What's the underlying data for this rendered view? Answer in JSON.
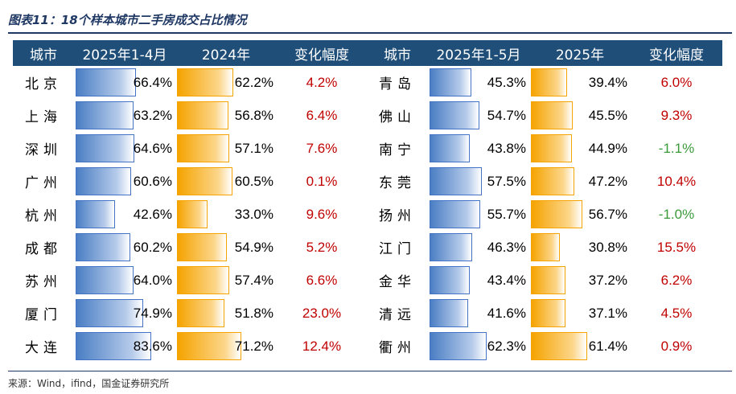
{
  "title": "图表11：18个样本城市二手房成交占比情况",
  "source": "来源：Wind，ifind，国金证券研究所",
  "colors": {
    "header_bg": "#1f4e79",
    "blue_bar": "#4a7ec4",
    "orange_bar": "#f5a300",
    "positive": "#c00000",
    "negative": "#3a9a3a"
  },
  "chart_data": {
    "type": "table",
    "title": "图表11：18个样本城市二手房成交占比情况",
    "headers": [
      "城市",
      "2025年1-4月",
      "2024年",
      "变化幅度",
      "城市",
      "2025年1-5月",
      "2025年",
      "变化幅度"
    ],
    "left": [
      {
        "city": "北京",
        "current": "66.4%",
        "current_value": 66.4,
        "prior": "62.2%",
        "prior_value": 62.2,
        "change": "4.2%",
        "change_value": 4.2
      },
      {
        "city": "上海",
        "current": "63.2%",
        "current_value": 63.2,
        "prior": "56.8%",
        "prior_value": 56.8,
        "change": "6.4%",
        "change_value": 6.4
      },
      {
        "city": "深圳",
        "current": "64.6%",
        "current_value": 64.6,
        "prior": "57.1%",
        "prior_value": 57.1,
        "change": "7.6%",
        "change_value": 7.6
      },
      {
        "city": "广州",
        "current": "60.6%",
        "current_value": 60.6,
        "prior": "60.5%",
        "prior_value": 60.5,
        "change": "0.1%",
        "change_value": 0.1
      },
      {
        "city": "杭州",
        "current": "42.6%",
        "current_value": 42.6,
        "prior": "33.0%",
        "prior_value": 33.0,
        "change": "9.6%",
        "change_value": 9.6
      },
      {
        "city": "成都",
        "current": "60.2%",
        "current_value": 60.2,
        "prior": "54.9%",
        "prior_value": 54.9,
        "change": "5.2%",
        "change_value": 5.2
      },
      {
        "city": "苏州",
        "current": "64.0%",
        "current_value": 64.0,
        "prior": "57.4%",
        "prior_value": 57.4,
        "change": "6.6%",
        "change_value": 6.6
      },
      {
        "city": "厦门",
        "current": "74.9%",
        "current_value": 74.9,
        "prior": "51.8%",
        "prior_value": 51.8,
        "change": "23.0%",
        "change_value": 23.0
      },
      {
        "city": "大连",
        "current": "83.6%",
        "current_value": 83.6,
        "prior": "71.2%",
        "prior_value": 71.2,
        "change": "12.4%",
        "change_value": 12.4
      }
    ],
    "right": [
      {
        "city": "青岛",
        "current": "45.3%",
        "current_value": 45.3,
        "prior": "39.4%",
        "prior_value": 39.4,
        "change": "6.0%",
        "change_value": 6.0
      },
      {
        "city": "佛山",
        "current": "54.7%",
        "current_value": 54.7,
        "prior": "45.5%",
        "prior_value": 45.5,
        "change": "9.3%",
        "change_value": 9.3
      },
      {
        "city": "南宁",
        "current": "43.8%",
        "current_value": 43.8,
        "prior": "44.9%",
        "prior_value": 44.9,
        "change": "-1.1%",
        "change_value": -1.1
      },
      {
        "city": "东莞",
        "current": "57.5%",
        "current_value": 57.5,
        "prior": "47.2%",
        "prior_value": 47.2,
        "change": "10.4%",
        "change_value": 10.4
      },
      {
        "city": "扬州",
        "current": "55.7%",
        "current_value": 55.7,
        "prior": "56.7%",
        "prior_value": 56.7,
        "change": "-1.0%",
        "change_value": -1.0
      },
      {
        "city": "江门",
        "current": "46.3%",
        "current_value": 46.3,
        "prior": "30.8%",
        "prior_value": 30.8,
        "change": "15.5%",
        "change_value": 15.5
      },
      {
        "city": "金华",
        "current": "43.4%",
        "current_value": 43.4,
        "prior": "37.2%",
        "prior_value": 37.2,
        "change": "6.2%",
        "change_value": 6.2
      },
      {
        "city": "清远",
        "current": "41.6%",
        "current_value": 41.6,
        "prior": "37.1%",
        "prior_value": 37.1,
        "change": "4.5%",
        "change_value": 4.5
      },
      {
        "city": "衢州",
        "current": "62.3%",
        "current_value": 62.3,
        "prior": "61.4%",
        "prior_value": 61.4,
        "change": "0.9%",
        "change_value": 0.9
      }
    ]
  }
}
